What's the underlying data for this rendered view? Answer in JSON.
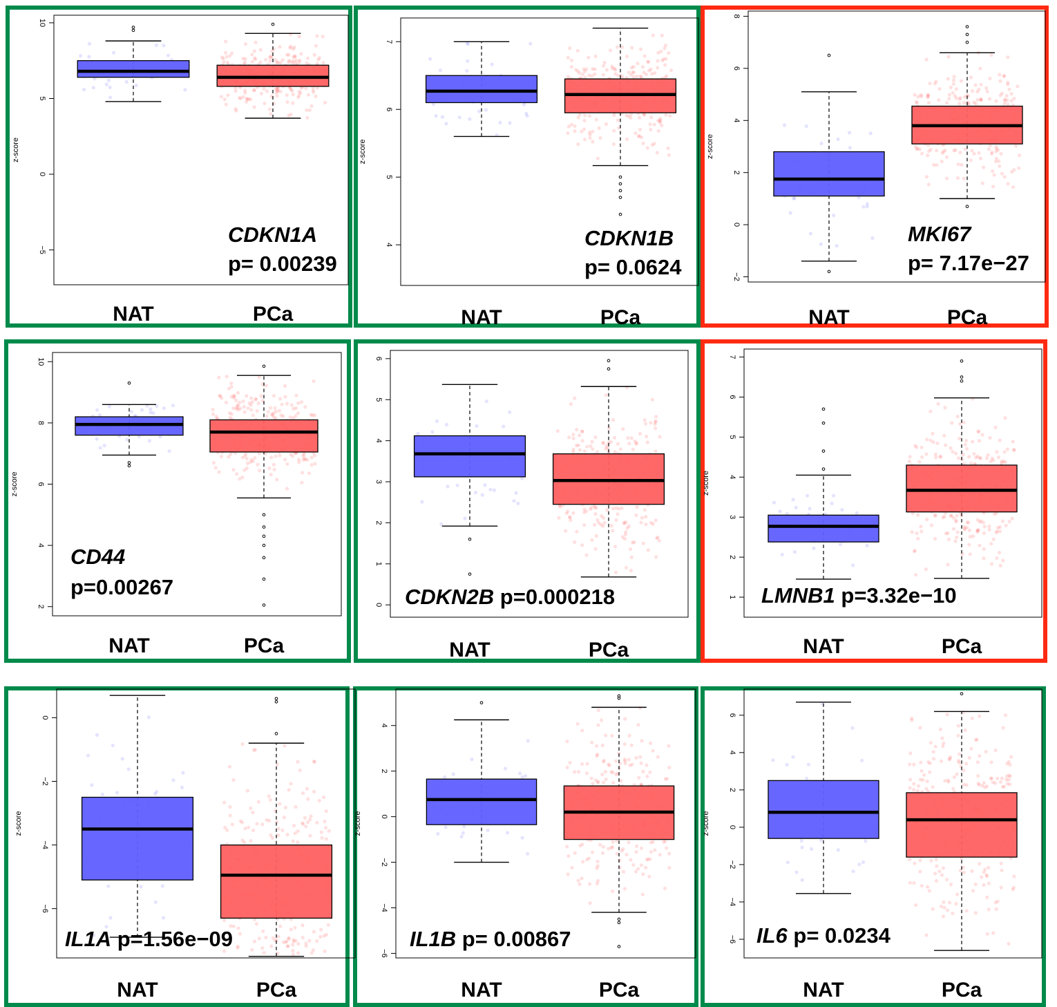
{
  "colors": {
    "green": "#008a4b",
    "red": "#ff2a12",
    "nat_fill": "#5f5fff",
    "pca_fill": "#ff6060",
    "nat_points": "#6c6cff",
    "pca_points": "#ff5555"
  },
  "chart_data": [
    {
      "type": "box",
      "gene": "CDKN1A",
      "p_label": "p= 0.00239",
      "frame": "green",
      "ylabel": "z-score",
      "ylim": [
        -7.3,
        10.5
      ],
      "yticks": [
        -5,
        0,
        5,
        10
      ],
      "label_layout": "stacked-right",
      "groups": [
        {
          "name": "NAT",
          "color": "blue",
          "whisker_low": 4.8,
          "q1": 6.4,
          "median": 6.8,
          "q3": 7.5,
          "whisker_high": 8.8,
          "outliers": [
            9.5,
            9.7
          ],
          "n_points": 40
        },
        {
          "name": "PCa",
          "color": "red",
          "whisker_low": 3.7,
          "q1": 5.8,
          "median": 6.4,
          "q3": 7.2,
          "whisker_high": 9.3,
          "outliers": [
            9.9
          ],
          "n_points": 300
        }
      ]
    },
    {
      "type": "box",
      "gene": "CDKN1B",
      "p_label": "p= 0.0624",
      "frame": "green",
      "ylabel": "z-score",
      "ylim": [
        3.4,
        7.35
      ],
      "yticks": [
        4,
        5,
        6,
        7
      ],
      "label_layout": "stacked-right",
      "groups": [
        {
          "name": "NAT",
          "color": "blue",
          "whisker_low": 5.6,
          "q1": 6.1,
          "median": 6.27,
          "q3": 6.5,
          "whisker_high": 7.0,
          "outliers": [],
          "n_points": 40
        },
        {
          "name": "PCa",
          "color": "red",
          "whisker_low": 5.17,
          "q1": 5.95,
          "median": 6.22,
          "q3": 6.45,
          "whisker_high": 7.2,
          "outliers": [
            5.0,
            4.9,
            4.8,
            4.7,
            4.45
          ],
          "n_points": 300
        }
      ]
    },
    {
      "type": "box",
      "gene": "MKI67",
      "p_label": "p= 7.17e−27",
      "frame": "red",
      "ylabel": "z-score",
      "ylim": [
        -2.2,
        8.2
      ],
      "yticks": [
        -2,
        0,
        2,
        4,
        6,
        8
      ],
      "label_layout": "stacked-right",
      "groups": [
        {
          "name": "NAT",
          "color": "blue",
          "whisker_low": -1.4,
          "q1": 1.1,
          "median": 1.75,
          "q3": 2.8,
          "whisker_high": 5.1,
          "outliers": [
            6.5,
            -1.8
          ],
          "n_points": 40
        },
        {
          "name": "PCa",
          "color": "red",
          "whisker_low": 1.0,
          "q1": 3.1,
          "median": 3.8,
          "q3": 4.55,
          "whisker_high": 6.6,
          "outliers": [
            7.0,
            7.3,
            7.6,
            0.7
          ],
          "n_points": 300
        }
      ]
    },
    {
      "type": "box",
      "gene": "CD44",
      "p_label": "p=0.00267",
      "frame": "green",
      "ylabel": "z-score",
      "ylim": [
        1.7,
        10.3
      ],
      "yticks": [
        2,
        4,
        6,
        8,
        10
      ],
      "label_layout": "stacked-left",
      "groups": [
        {
          "name": "NAT",
          "color": "blue",
          "whisker_low": 6.95,
          "q1": 7.6,
          "median": 7.95,
          "q3": 8.2,
          "whisker_high": 8.6,
          "outliers": [
            9.3,
            6.7,
            6.6
          ],
          "n_points": 40
        },
        {
          "name": "PCa",
          "color": "red",
          "whisker_low": 5.55,
          "q1": 7.05,
          "median": 7.7,
          "q3": 8.1,
          "whisker_high": 9.55,
          "outliers": [
            9.85,
            5.0,
            4.6,
            4.3,
            4.0,
            3.6,
            2.9,
            2.05
          ],
          "n_points": 300
        }
      ]
    },
    {
      "type": "box",
      "gene": "CDKN2B",
      "p_label": "p=0.000218",
      "frame": "green",
      "ylabel": "",
      "ylim": [
        -0.3,
        6.2
      ],
      "yticks": [
        0,
        1,
        2,
        3,
        4,
        5,
        6
      ],
      "label_layout": "inline",
      "groups": [
        {
          "name": "NAT",
          "color": "blue",
          "whisker_low": 1.92,
          "q1": 3.12,
          "median": 3.68,
          "q3": 4.12,
          "whisker_high": 5.37,
          "outliers": [
            1.6,
            0.75
          ],
          "n_points": 40
        },
        {
          "name": "PCa",
          "color": "red",
          "whisker_low": 0.68,
          "q1": 2.45,
          "median": 3.03,
          "q3": 3.68,
          "whisker_high": 5.32,
          "outliers": [
            5.75,
            5.95
          ],
          "n_points": 300
        }
      ]
    },
    {
      "type": "box",
      "gene": "LMNB1",
      "p_label": "p=3.32e−10",
      "frame": "red",
      "ylabel": "z-score",
      "ylim": [
        0.5,
        7.2
      ],
      "yticks": [
        1,
        2,
        3,
        4,
        5,
        6,
        7
      ],
      "label_layout": "inline",
      "groups": [
        {
          "name": "NAT",
          "color": "blue",
          "whisker_low": 1.45,
          "q1": 2.38,
          "median": 2.77,
          "q3": 3.05,
          "whisker_high": 4.05,
          "outliers": [
            4.2,
            4.65,
            5.35,
            5.7
          ],
          "n_points": 40
        },
        {
          "name": "PCa",
          "color": "red",
          "whisker_low": 1.47,
          "q1": 3.13,
          "median": 3.67,
          "q3": 4.3,
          "whisker_high": 5.98,
          "outliers": [
            6.4,
            6.5,
            6.9
          ],
          "n_points": 300
        }
      ]
    },
    {
      "type": "box",
      "gene": "IL1A",
      "p_label": "p=1.56e−09",
      "frame": "green",
      "ylabel": "z-score",
      "ylim": [
        -7.55,
        0.9
      ],
      "yticks": [
        -6,
        -4,
        -2,
        0
      ],
      "label_layout": "inline",
      "groups": [
        {
          "name": "NAT",
          "color": "blue",
          "whisker_low": -6.9,
          "q1": -5.1,
          "median": -3.5,
          "q3": -2.5,
          "whisker_high": 0.7,
          "outliers": [],
          "n_points": 40
        },
        {
          "name": "PCa",
          "color": "red",
          "whisker_low": -7.5,
          "q1": -6.3,
          "median": -4.95,
          "q3": -4.0,
          "whisker_high": -0.8,
          "outliers": [
            0.5,
            0.6,
            -0.5
          ],
          "n_points": 300
        }
      ]
    },
    {
      "type": "box",
      "gene": "IL1B",
      "p_label": "p= 0.00867",
      "frame": "green",
      "ylabel": "z-score",
      "ylim": [
        -6.2,
        5.6
      ],
      "yticks": [
        -6,
        -4,
        -2,
        0,
        2,
        4
      ],
      "label_layout": "inline",
      "groups": [
        {
          "name": "NAT",
          "color": "blue",
          "whisker_low": -2.0,
          "q1": -0.35,
          "median": 0.75,
          "q3": 1.65,
          "whisker_high": 4.25,
          "outliers": [
            5.0
          ],
          "n_points": 40
        },
        {
          "name": "PCa",
          "color": "red",
          "whisker_low": -4.2,
          "q1": -1.0,
          "median": 0.2,
          "q3": 1.35,
          "whisker_high": 4.8,
          "outliers": [
            5.2,
            5.3,
            -4.5,
            -4.65,
            -5.7
          ],
          "n_points": 300
        }
      ]
    },
    {
      "type": "box",
      "gene": "IL6",
      "p_label": "p= 0.0234",
      "frame": "green",
      "ylabel": "z-score",
      "ylim": [
        -7.0,
        7.4
      ],
      "yticks": [
        -6,
        -4,
        -2,
        0,
        2,
        4,
        6
      ],
      "label_layout": "inline",
      "groups": [
        {
          "name": "NAT",
          "color": "blue",
          "whisker_low": -3.55,
          "q1": -0.6,
          "median": 0.8,
          "q3": 2.5,
          "whisker_high": 6.7,
          "outliers": [],
          "n_points": 40
        },
        {
          "name": "PCa",
          "color": "red",
          "whisker_low": -6.6,
          "q1": -1.6,
          "median": 0.4,
          "q3": 1.85,
          "whisker_high": 6.2,
          "outliers": [
            7.15
          ],
          "n_points": 300
        }
      ]
    }
  ]
}
